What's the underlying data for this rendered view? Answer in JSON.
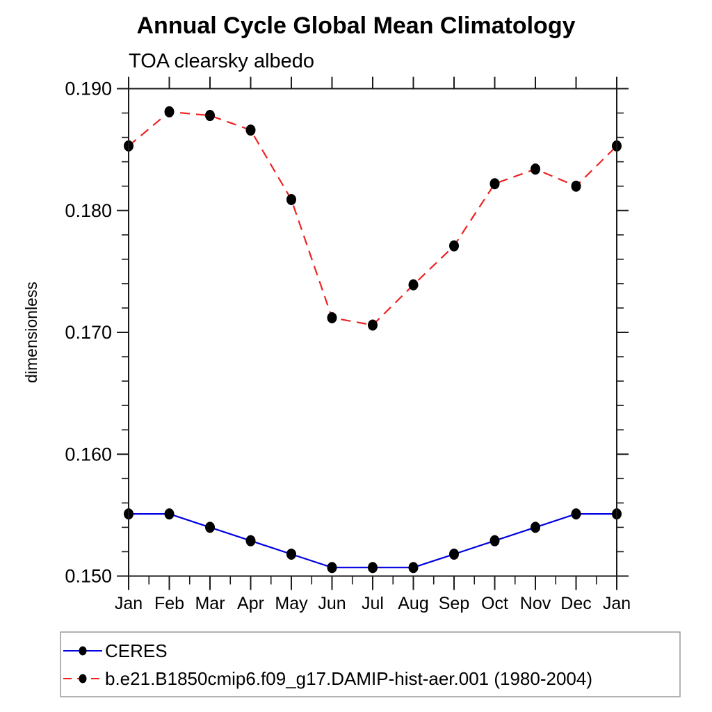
{
  "chart_data": {
    "type": "line",
    "title": "Annual Cycle Global Mean Climatology",
    "subtitle": "TOA clearsky albedo",
    "ylabel": "dimensionless",
    "xlabel": "",
    "x_categories": [
      "Jan",
      "Feb",
      "Mar",
      "Apr",
      "May",
      "Jun",
      "Jul",
      "Aug",
      "Sep",
      "Oct",
      "Nov",
      "Dec",
      "Jan"
    ],
    "ylim": [
      0.15,
      0.19
    ],
    "y_major_ticks": [
      0.15,
      0.16,
      0.17,
      0.18,
      0.19
    ],
    "y_tick_labels": [
      "0.150",
      "0.160",
      "0.170",
      "0.180",
      "0.190"
    ],
    "y_minor_step": 0.002,
    "grid": "off",
    "legend_position": "bottom-left",
    "axis_color": "#1a1a1a",
    "marker_color": "#000000",
    "series": [
      {
        "name": "CERES",
        "color": "#0000e0",
        "line_style": "solid",
        "marker": "circle",
        "values": [
          0.1551,
          0.1551,
          0.154,
          0.1529,
          0.1518,
          0.1507,
          0.1507,
          0.1507,
          0.1518,
          0.1529,
          0.154,
          0.1551,
          0.1551
        ]
      },
      {
        "name": "b.e21.B1850cmip6.f09_g17.DAMIP-hist-aer.001 (1980-2004)",
        "color": "#ee2222",
        "line_style": "dashed",
        "marker": "circle",
        "values": [
          0.1853,
          0.1881,
          0.1878,
          0.1866,
          0.1809,
          0.1712,
          0.1706,
          0.1739,
          0.1771,
          0.1822,
          0.1834,
          0.182,
          0.1853
        ]
      }
    ]
  }
}
